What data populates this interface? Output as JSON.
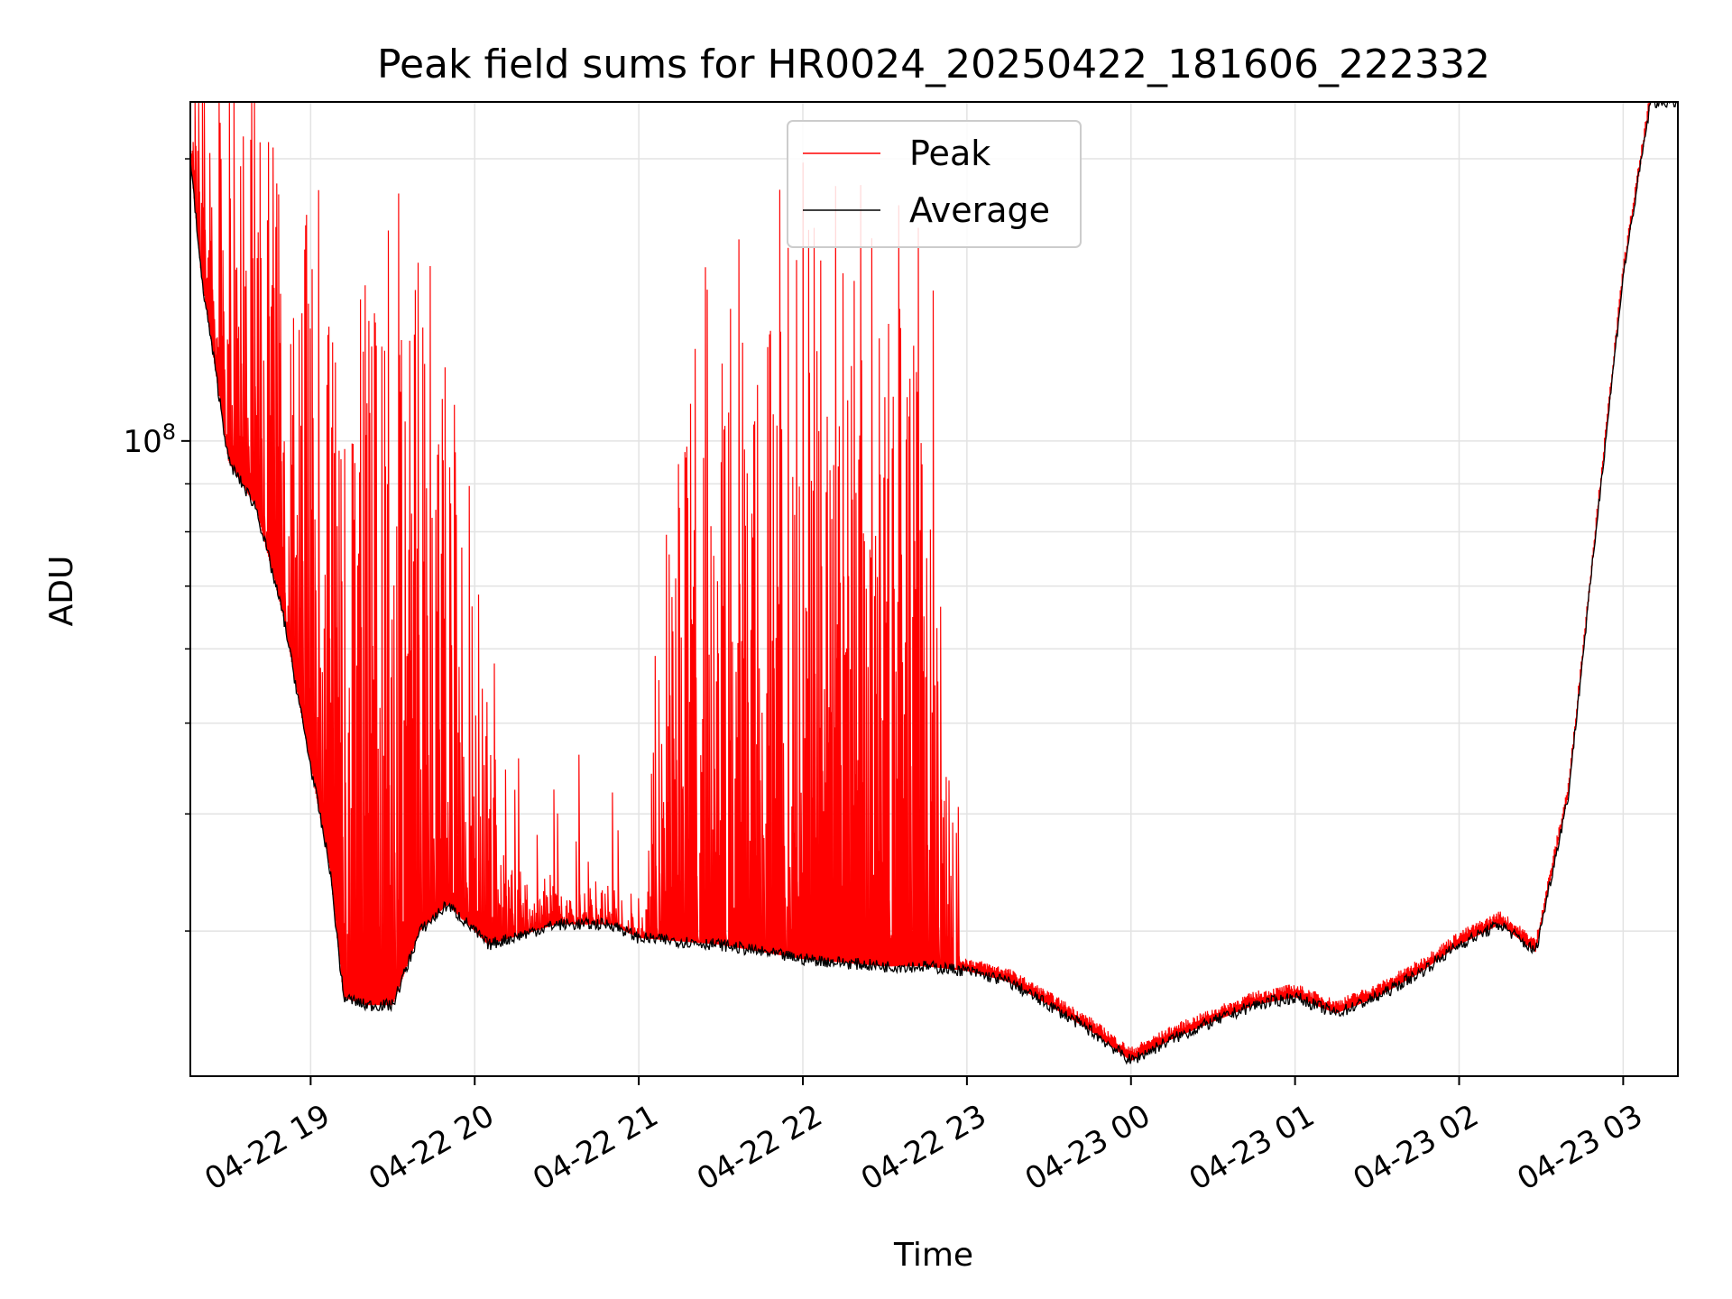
{
  "chart_data": {
    "type": "line",
    "title": "Peak field sums for HR0024_20250422_181606_222332",
    "xlabel": "Time",
    "ylabel": "ADU",
    "y_scale": "log",
    "ylim": [
      21000000.0,
      230000000.0
    ],
    "xlim": [
      "2025-04-22 18:16",
      "2025-04-23 03:20"
    ],
    "grid": true,
    "legend_position": "upper-center",
    "x_ticks": [
      "04-22 19",
      "04-22 20",
      "04-22 21",
      "04-22 22",
      "04-22 23",
      "04-23 00",
      "04-23 01",
      "04-23 02",
      "04-23 03"
    ],
    "y_tick_major": [
      {
        "value": 100000000.0,
        "label": "10",
        "exponent": "8"
      }
    ],
    "y_tick_minor": [
      30000000.0,
      40000000.0,
      50000000.0,
      60000000.0,
      70000000.0,
      80000000.0,
      90000000.0,
      200000000.0
    ],
    "series": [
      {
        "name": "Peak",
        "color": "#ff0000",
        "style": "spiky",
        "x": [
          "2025-04-22 18:16",
          "2025-04-22 18:30",
          "2025-04-22 18:45",
          "2025-04-22 19:00",
          "2025-04-22 19:10",
          "2025-04-22 19:20",
          "2025-04-22 19:30",
          "2025-04-22 19:40",
          "2025-04-22 19:50",
          "2025-04-22 20:00",
          "2025-04-22 20:15",
          "2025-04-22 20:30",
          "2025-04-22 20:45",
          "2025-04-22 21:00",
          "2025-04-22 21:15",
          "2025-04-22 21:30",
          "2025-04-22 21:45",
          "2025-04-22 22:00",
          "2025-04-22 22:15",
          "2025-04-22 22:30",
          "2025-04-22 22:45",
          "2025-04-22 22:55",
          "2025-04-22 23:15",
          "2025-04-22 23:30",
          "2025-04-22 23:45",
          "2025-04-23 00:00",
          "2025-04-23 00:15",
          "2025-04-23 00:30",
          "2025-04-23 00:45",
          "2025-04-23 01:00",
          "2025-04-23 01:15",
          "2025-04-23 01:30",
          "2025-04-23 01:45",
          "2025-04-23 02:00",
          "2025-04-23 02:15",
          "2025-04-23 02:28",
          "2025-04-23 02:40",
          "2025-04-23 02:50",
          "2025-04-23 03:00",
          "2025-04-23 03:20"
        ],
        "values": [
          230000000.0,
          220000000.0,
          190000000.0,
          150000000.0,
          120000000.0,
          110000000.0,
          140000000.0,
          120000000.0,
          100000000.0,
          60000000.0,
          34000000.0,
          34000000.0,
          33000000.0,
          32000000.0,
          105000000.0,
          120000000.0,
          130000000.0,
          160000000.0,
          145000000.0,
          120000000.0,
          170000000.0,
          30000000.0,
          28000000.0,
          25500000.0,
          23000000.0,
          22000000.0,
          23500000.0,
          24500000.0,
          25500000.0,
          26000000.0,
          25000000.0,
          26000000.0,
          27500000.0,
          29500000.0,
          31000000.0,
          29000000.0,
          42000000.0,
          80000000.0,
          150000000.0,
          230000000.0
        ],
        "spike_window_x": [
          "2025-04-22 18:16",
          "2025-04-22 22:57"
        ]
      },
      {
        "name": "Average",
        "color": "#000000",
        "x": [
          "2025-04-22 18:16",
          "2025-04-22 18:20",
          "2025-04-22 18:25",
          "2025-04-22 18:30",
          "2025-04-22 18:40",
          "2025-04-22 18:50",
          "2025-04-22 19:00",
          "2025-04-22 19:07",
          "2025-04-22 19:12",
          "2025-04-22 19:20",
          "2025-04-22 19:30",
          "2025-04-22 19:40",
          "2025-04-22 19:50",
          "2025-04-22 19:55",
          "2025-04-22 20:05",
          "2025-04-22 20:30",
          "2025-04-22 20:50",
          "2025-04-22 21:00",
          "2025-04-22 21:30",
          "2025-04-22 22:00",
          "2025-04-22 22:30",
          "2025-04-22 22:45",
          "2025-04-22 23:00",
          "2025-04-22 23:15",
          "2025-04-22 23:30",
          "2025-04-22 23:45",
          "2025-04-23 00:00",
          "2025-04-23 00:15",
          "2025-04-23 00:30",
          "2025-04-23 00:45",
          "2025-04-23 01:00",
          "2025-04-23 01:15",
          "2025-04-23 01:30",
          "2025-04-23 01:45",
          "2025-04-23 02:00",
          "2025-04-23 02:15",
          "2025-04-23 02:28",
          "2025-04-23 02:40",
          "2025-04-23 02:50",
          "2025-04-23 03:00",
          "2025-04-23 03:10",
          "2025-04-23 03:20"
        ],
        "values": [
          200000000.0,
          150000000.0,
          120000000.0,
          95000000.0,
          85000000.0,
          65000000.0,
          45000000.0,
          35000000.0,
          25500000.0,
          25000000.0,
          25000000.0,
          30000000.0,
          32000000.0,
          31000000.0,
          29000000.0,
          30500000.0,
          30500000.0,
          29500000.0,
          29000000.0,
          28000000.0,
          27500000.0,
          27500000.0,
          27200000.0,
          26500000.0,
          25000000.0,
          23500000.0,
          21800000.0,
          23000000.0,
          24000000.0,
          25000000.0,
          25500000.0,
          24500000.0,
          25500000.0,
          27000000.0,
          29000000.0,
          30500000.0,
          28500000.0,
          42000000.0,
          80000000.0,
          150000000.0,
          230000000.0,
          230000000.0
        ]
      }
    ]
  }
}
